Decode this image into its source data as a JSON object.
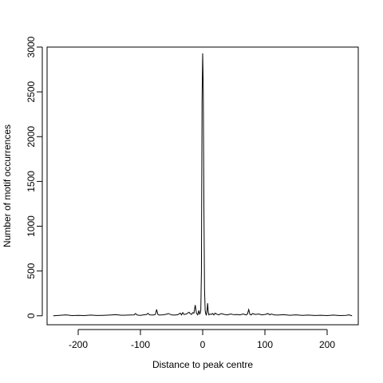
{
  "chart_data": {
    "type": "line",
    "title": "",
    "xlabel": "Distance to peak centre",
    "ylabel": "Number of motif occurrences",
    "xlim": [
      -250,
      250
    ],
    "ylim": [
      -100,
      3000
    ],
    "x_ticks": [
      -200,
      -100,
      0,
      100,
      200
    ],
    "x_tick_labels": [
      "-200",
      "-100",
      "0",
      "100",
      "200"
    ],
    "y_ticks": [
      0,
      500,
      1000,
      1500,
      2000,
      2500,
      3000
    ],
    "y_tick_labels": [
      "0",
      "500",
      "1000",
      "1500",
      "2000",
      "2500",
      "3000"
    ],
    "grid": false,
    "legend": "none",
    "series": [
      {
        "x": [
          -240,
          -230,
          -220,
          -210,
          -200,
          -190,
          -180,
          -170,
          -160,
          -150,
          -140,
          -130,
          -120,
          -110,
          -108,
          -105,
          -100,
          -95,
          -90,
          -88,
          -85,
          -80,
          -76,
          -74,
          -72,
          -70,
          -65,
          -60,
          -55,
          -50,
          -45,
          -40,
          -36,
          -34,
          -32,
          -30,
          -26,
          -22,
          -20,
          -18,
          -16,
          -14,
          -12,
          -10,
          -8,
          -6,
          -5,
          -4,
          -3,
          -2,
          -1,
          0,
          1,
          2,
          3,
          4,
          5,
          6,
          7,
          8,
          9,
          10,
          12,
          14,
          16,
          18,
          20,
          22,
          24,
          26,
          28,
          30,
          35,
          40,
          45,
          50,
          55,
          60,
          65,
          70,
          72,
          74,
          76,
          78,
          80,
          85,
          90,
          95,
          100,
          105,
          108,
          110,
          115,
          120,
          130,
          140,
          150,
          160,
          170,
          180,
          190,
          200,
          210,
          220,
          230,
          235,
          240
        ],
        "y": [
          0,
          5,
          10,
          2,
          5,
          3,
          8,
          4,
          5,
          8,
          12,
          6,
          8,
          10,
          25,
          8,
          5,
          10,
          15,
          28,
          10,
          8,
          15,
          70,
          15,
          8,
          10,
          15,
          25,
          10,
          8,
          12,
          30,
          10,
          35,
          15,
          20,
          40,
          25,
          15,
          35,
          30,
          120,
          30,
          10,
          60,
          20,
          30,
          60,
          500,
          2400,
          2930,
          2500,
          1200,
          300,
          60,
          20,
          10,
          60,
          140,
          40,
          10,
          20,
          15,
          25,
          10,
          30,
          20,
          15,
          10,
          20,
          25,
          15,
          10,
          20,
          12,
          15,
          10,
          20,
          10,
          20,
          70,
          15,
          10,
          25,
          15,
          20,
          10,
          15,
          25,
          10,
          20,
          10,
          8,
          12,
          6,
          10,
          5,
          8,
          4,
          6,
          3,
          8,
          2,
          5,
          10,
          0
        ]
      }
    ]
  }
}
